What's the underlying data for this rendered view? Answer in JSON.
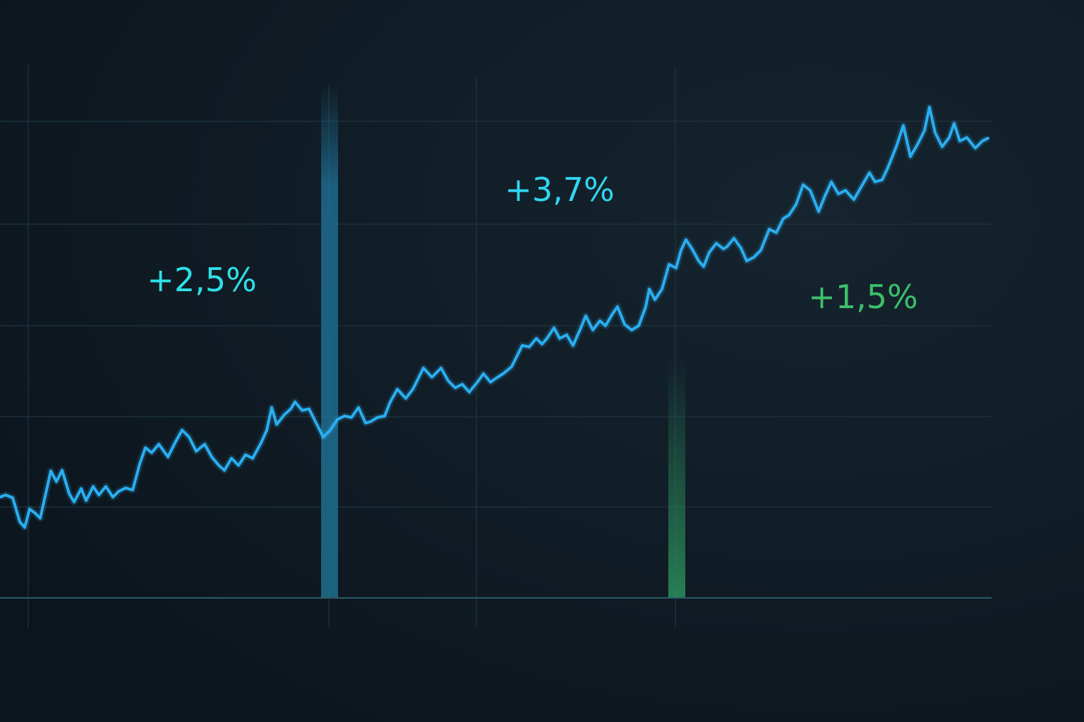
{
  "chart_data": {
    "type": "line",
    "x": [
      0,
      8,
      18,
      28,
      35,
      42,
      50,
      57,
      72,
      80,
      88,
      98,
      105,
      115,
      122,
      132,
      140,
      150,
      160,
      168,
      178,
      188,
      198,
      206,
      215,
      225,
      238,
      248,
      258,
      268,
      278,
      290,
      300,
      310,
      318,
      328,
      338,
      348,
      358,
      370,
      378,
      385,
      392,
      403,
      412,
      418,
      428,
      438,
      448,
      458,
      468,
      478,
      488,
      498,
      508,
      518,
      525,
      535,
      545,
      553,
      563,
      575,
      585,
      600,
      612,
      625,
      635,
      645,
      655,
      665,
      678,
      685,
      695,
      705,
      713,
      725,
      740,
      750,
      760,
      768,
      775,
      785,
      793,
      803,
      812,
      823,
      830,
      840,
      850,
      858,
      868,
      875,
      885,
      895,
      905,
      915,
      920,
      928,
      938,
      948,
      958,
      965,
      972,
      980,
      990,
      997,
      1005,
      1015,
      1025,
      1030,
      1040,
      1050,
      1058,
      1068,
      1078,
      1090,
      1100,
      1110,
      1118,
      1128,
      1138,
      1148,
      1160,
      1168,
      1178,
      1188,
      1198,
      1210,
      1222,
      1232,
      1240,
      1250,
      1258,
      1270,
      1280,
      1290,
      1300,
      1310,
      1317,
      1325,
      1335,
      1345,
      1352,
      1360,
      1370,
      1382,
      1392,
      1400
    ],
    "series": [
      {
        "color": "#2aaef0",
        "values": [
          143,
          146,
          142,
          108,
          100,
          126,
          120,
          113,
          180,
          165,
          181,
          148,
          136,
          155,
          138,
          158,
          146,
          158,
          143,
          151,
          156,
          153,
          190,
          213,
          206,
          218,
          200,
          220,
          238,
          228,
          208,
          218,
          200,
          188,
          181,
          198,
          188,
          203,
          198,
          220,
          238,
          270,
          246,
          260,
          268,
          278,
          266,
          268,
          248,
          228,
          238,
          253,
          258,
          256,
          270,
          248,
          250,
          256,
          258,
          278,
          296,
          283,
          296,
          326,
          313,
          326,
          308,
          298,
          303,
          292,
          308,
          318,
          306,
          313,
          318,
          328,
          358,
          356,
          368,
          360,
          368,
          383,
          368,
          373,
          358,
          383,
          400,
          380,
          393,
          386,
          403,
          413,
          388,
          380,
          386,
          413,
          438,
          423,
          438,
          473,
          468,
          493,
          508,
          496,
          478,
          470,
          490,
          503,
          495,
          498,
          510,
          496,
          478,
          483,
          493,
          523,
          518,
          538,
          543,
          558,
          586,
          578,
          548,
          568,
          590,
          573,
          578,
          565,
          586,
          603,
          590,
          593,
          610,
          640,
          670,
          626,
          643,
          663,
          696,
          660,
          640,
          653,
          673,
          648,
          653,
          638,
          648,
          652
        ]
      }
    ],
    "xlim": [
      0,
      1405
    ],
    "ylim": [
      0,
      848
    ],
    "annotations": [
      {
        "text": "+2,5%",
        "color": "#2fe0e8"
      },
      {
        "text": "+3,7%",
        "color": "#2fd6f0"
      },
      {
        "text": "+1,5%",
        "color": "#3dbf6a"
      }
    ]
  }
}
